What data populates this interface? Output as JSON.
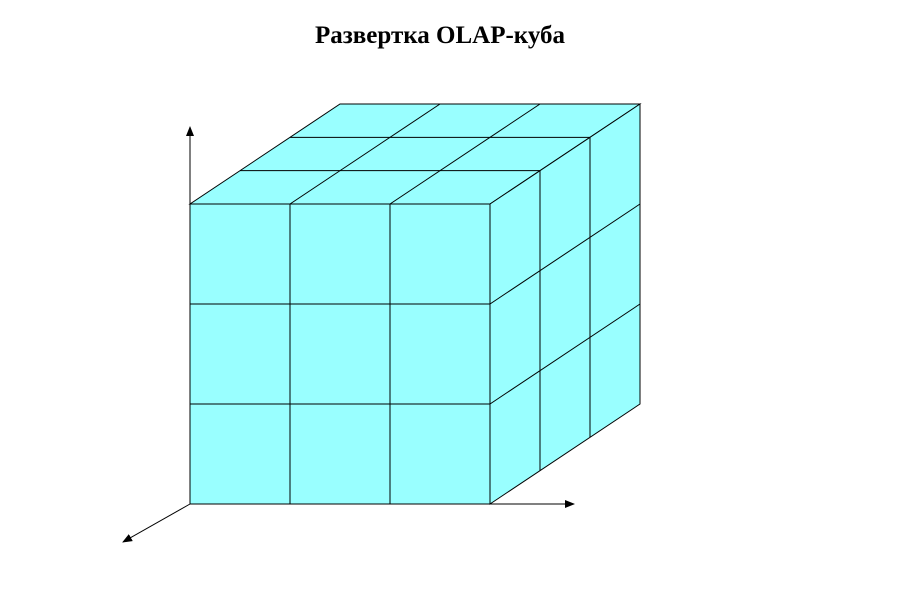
{
  "title": "Развертка OLAP-куба",
  "cube": {
    "divisions": 3,
    "face_color": "#99ffff",
    "line_color": "#000000",
    "faces": [
      "front",
      "top",
      "right"
    ]
  },
  "axes": [
    "vertical",
    "horizontal",
    "depth"
  ]
}
